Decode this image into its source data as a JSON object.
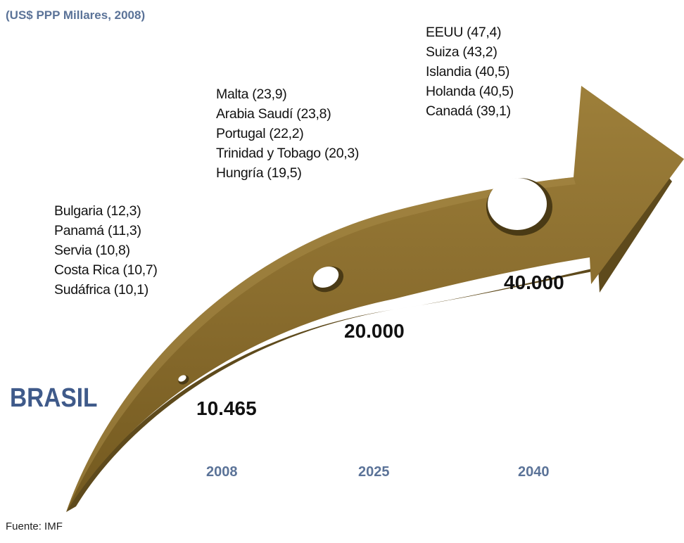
{
  "subtitle": "(US$ PPP Millares, 2008)",
  "country": "BRASIL",
  "milestones": [
    {
      "year": "2008",
      "value": "10.465",
      "peers": [
        "Bulgaria (12,3)",
        "Panamá (11,3)",
        "Servia (10,8)",
        "Costa Rica (10,7)",
        "Sudáfrica (10,1)"
      ]
    },
    {
      "year": "2025",
      "value": "20.000",
      "peers": [
        "Malta (23,9)",
        "Arabia Saudí (23,8)",
        "Portugal (22,2)",
        "Trinidad y Tobago (20,3)",
        "Hungría (19,5)"
      ]
    },
    {
      "year": "2040",
      "value": "40.000",
      "peers": [
        "EEUU (47,4)",
        "Suiza (43,2)",
        "Islandia (40,5)",
        "Holanda (40,5)",
        "Canadá (39,1)"
      ]
    }
  ],
  "source": "Fuente: IMF",
  "colors": {
    "arrow": "#8a6d2e",
    "arrow_shadow": "#5e4a1c",
    "accent_blue": "#3f5a8a",
    "year_blue": "#5b7398"
  }
}
